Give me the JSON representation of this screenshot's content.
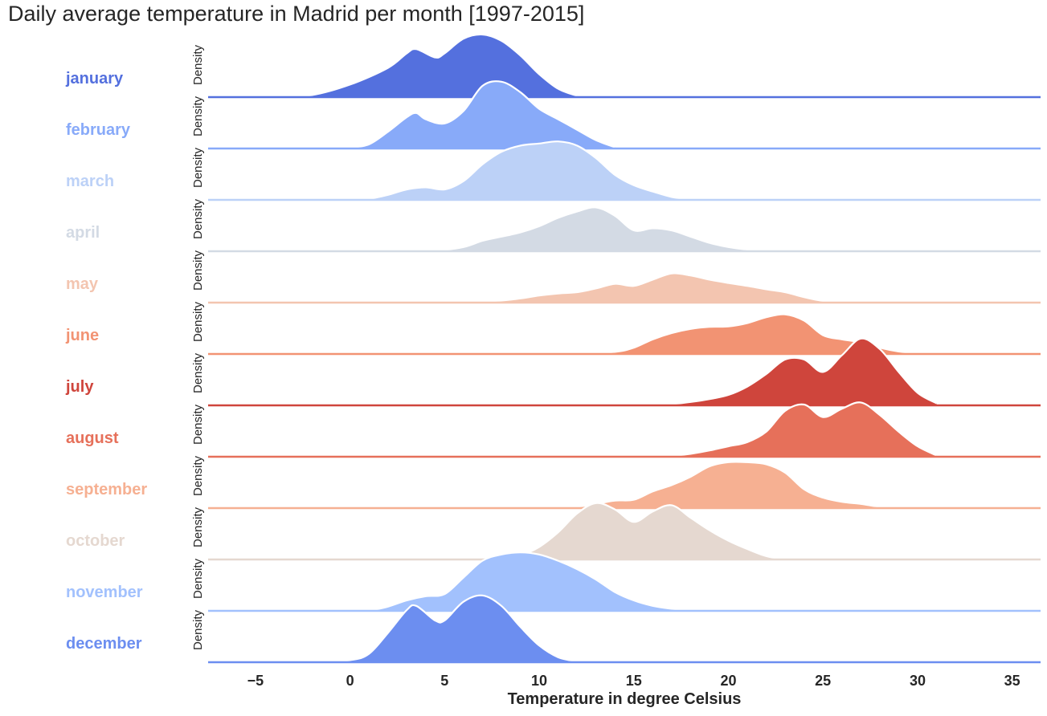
{
  "chart_data": {
    "type": "ridgeline",
    "title": "Daily average temperature in Madrid per month [1997-2015]",
    "xlabel": "Temperature in degree Celsius",
    "ylabel": "Density",
    "xlim": [
      -7.5,
      36.5
    ],
    "xticks": [
      -5,
      0,
      5,
      10,
      15,
      20,
      25,
      30,
      35
    ],
    "xtick_labels": [
      "−5",
      "0",
      "5",
      "10",
      "15",
      "20",
      "25",
      "30",
      "35"
    ],
    "grid": false,
    "legend": "none; month names labelled at left of each ridge",
    "series": [
      {
        "name": "january",
        "color": "#5470de",
        "x": [
          -4,
          -2,
          0,
          2,
          3,
          3.5,
          4.5,
          5,
          6,
          7,
          8,
          9,
          10,
          11,
          12
        ],
        "density": [
          0,
          0.005,
          0.03,
          0.07,
          0.105,
          0.115,
          0.095,
          0.105,
          0.14,
          0.15,
          0.135,
          0.1,
          0.055,
          0.02,
          0.003
        ]
      },
      {
        "name": "february",
        "color": "#88aaf9",
        "x": [
          0,
          1,
          2,
          3,
          3.5,
          4,
          5,
          6,
          7,
          8,
          9,
          10,
          11,
          12,
          13,
          14
        ],
        "density": [
          0.002,
          0.01,
          0.04,
          0.075,
          0.085,
          0.07,
          0.06,
          0.09,
          0.15,
          0.16,
          0.135,
          0.095,
          0.07,
          0.045,
          0.02,
          0.003
        ]
      },
      {
        "name": "march",
        "color": "#bcd1f7",
        "x": [
          1,
          2,
          3,
          4,
          5,
          6,
          7,
          8,
          9,
          10,
          11,
          12,
          13,
          14,
          15,
          16,
          17,
          18
        ],
        "density": [
          0.002,
          0.012,
          0.025,
          0.03,
          0.025,
          0.045,
          0.085,
          0.115,
          0.13,
          0.135,
          0.14,
          0.13,
          0.1,
          0.06,
          0.035,
          0.02,
          0.007,
          0.001
        ]
      },
      {
        "name": "april",
        "color": "#d3dae4",
        "x": [
          4.5,
          6,
          7,
          8,
          9,
          10,
          11,
          12,
          13,
          14,
          15,
          16,
          17,
          18,
          19,
          20,
          21,
          22
        ],
        "density": [
          0,
          0.01,
          0.025,
          0.035,
          0.045,
          0.06,
          0.08,
          0.095,
          0.105,
          0.085,
          0.05,
          0.055,
          0.05,
          0.035,
          0.02,
          0.01,
          0.004,
          0
        ]
      },
      {
        "name": "may",
        "color": "#f3c5b0",
        "x": [
          6,
          8,
          9,
          10,
          11,
          12,
          13,
          14,
          15,
          16,
          17,
          18,
          19,
          20,
          21,
          22,
          23,
          24,
          25,
          26
        ],
        "density": [
          0,
          0.005,
          0.01,
          0.017,
          0.022,
          0.025,
          0.034,
          0.045,
          0.04,
          0.055,
          0.07,
          0.065,
          0.055,
          0.047,
          0.04,
          0.032,
          0.025,
          0.013,
          0.004,
          0
        ]
      },
      {
        "name": "june",
        "color": "#f29373",
        "x": [
          12,
          14,
          15,
          16,
          17,
          18,
          19,
          20,
          21,
          22,
          23,
          24,
          25,
          26,
          27,
          28,
          29,
          30
        ],
        "density": [
          0,
          0.005,
          0.015,
          0.035,
          0.05,
          0.06,
          0.065,
          0.066,
          0.074,
          0.088,
          0.095,
          0.08,
          0.045,
          0.035,
          0.028,
          0.015,
          0.006,
          0.001
        ]
      },
      {
        "name": "july",
        "color": "#cf453c",
        "x": [
          16,
          17,
          18,
          19,
          20,
          21,
          22,
          23,
          24,
          25,
          26,
          27,
          28,
          29,
          30,
          31
        ],
        "density": [
          0,
          0.003,
          0.008,
          0.015,
          0.025,
          0.045,
          0.075,
          0.11,
          0.11,
          0.08,
          0.12,
          0.16,
          0.135,
          0.08,
          0.03,
          0.005
        ]
      },
      {
        "name": "august",
        "color": "#e6705a",
        "x": [
          16,
          17,
          18,
          19,
          20,
          21,
          22,
          23,
          24,
          25,
          26,
          27,
          28,
          29,
          30,
          31
        ],
        "density": [
          0,
          0.002,
          0.007,
          0.015,
          0.025,
          0.035,
          0.06,
          0.11,
          0.125,
          0.095,
          0.115,
          0.13,
          0.1,
          0.06,
          0.025,
          0.003
        ]
      },
      {
        "name": "september",
        "color": "#f6b092",
        "x": [
          11,
          12,
          13,
          14,
          15,
          16,
          17,
          18,
          19,
          20,
          21,
          22,
          23,
          24,
          25,
          26,
          27,
          28,
          29
        ],
        "density": [
          0,
          0.003,
          0.01,
          0.018,
          0.02,
          0.04,
          0.055,
          0.075,
          0.1,
          0.11,
          0.11,
          0.105,
          0.085,
          0.045,
          0.025,
          0.015,
          0.01,
          0.003,
          0
        ]
      },
      {
        "name": "october",
        "color": "#e5d8d0",
        "x": [
          6,
          8,
          9,
          10,
          11,
          12,
          13,
          14,
          15,
          16,
          17,
          18,
          19,
          20,
          21,
          22,
          23
        ],
        "density": [
          0,
          0.002,
          0.01,
          0.03,
          0.065,
          0.11,
          0.135,
          0.12,
          0.09,
          0.115,
          0.13,
          0.1,
          0.07,
          0.045,
          0.025,
          0.008,
          0
        ]
      },
      {
        "name": "november",
        "color": "#a2c1fd",
        "x": [
          1,
          2,
          3,
          4,
          5,
          6,
          7,
          8,
          9,
          10,
          11,
          12,
          13,
          14,
          15,
          16,
          17,
          18
        ],
        "density": [
          0,
          0.01,
          0.025,
          0.035,
          0.04,
          0.08,
          0.12,
          0.135,
          0.14,
          0.135,
          0.12,
          0.1,
          0.075,
          0.045,
          0.025,
          0.012,
          0.005,
          0
        ]
      },
      {
        "name": "december",
        "color": "#6c8ef0",
        "x": [
          -2,
          0,
          1,
          2,
          3,
          3.5,
          4.5,
          5,
          6,
          7,
          8,
          9,
          10,
          11,
          12
        ],
        "density": [
          0,
          0.005,
          0.02,
          0.07,
          0.125,
          0.135,
          0.1,
          0.1,
          0.145,
          0.16,
          0.135,
          0.085,
          0.04,
          0.012,
          0.002
        ]
      }
    ]
  }
}
